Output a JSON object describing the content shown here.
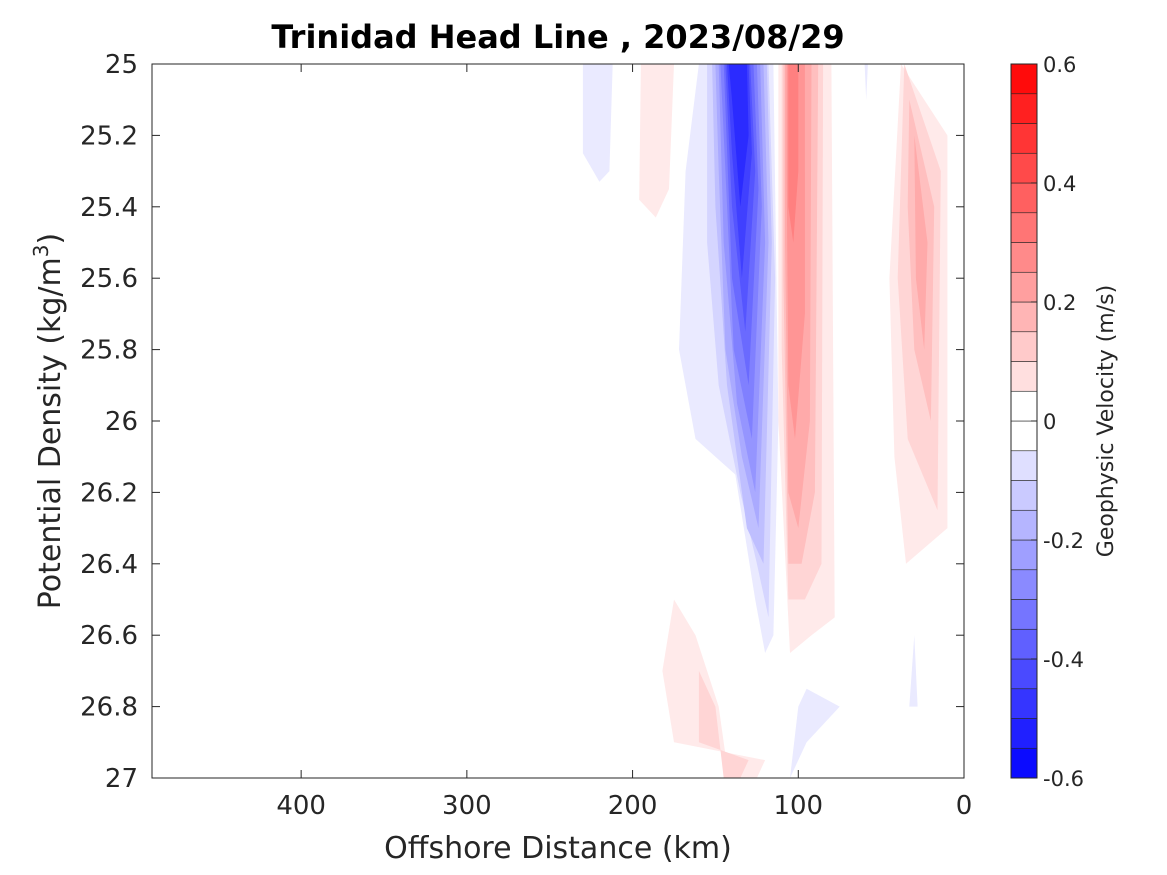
{
  "chart_data": {
    "type": "heatmap",
    "title": "Trinidad Head Line , 2023/08/29",
    "xlabel": "Offshore Distance (km)",
    "ylabel_main": "Potential Density (kg/m",
    "ylabel_sup": "3",
    "ylabel_close": ")",
    "xlim": [
      490,
      0
    ],
    "x_reversed": true,
    "ylim": [
      25,
      27
    ],
    "y_reversed": true,
    "x_ticks": [
      {
        "value": 400,
        "label": "400"
      },
      {
        "value": 300,
        "label": "300"
      },
      {
        "value": 200,
        "label": "200"
      },
      {
        "value": 100,
        "label": "100"
      },
      {
        "value": 0,
        "label": "0"
      }
    ],
    "y_ticks": [
      {
        "value": 25,
        "label": "25"
      },
      {
        "value": 25.2,
        "label": "25.2"
      },
      {
        "value": 25.4,
        "label": "25.4"
      },
      {
        "value": 25.6,
        "label": "25.6"
      },
      {
        "value": 25.8,
        "label": "25.8"
      },
      {
        "value": 26,
        "label": "26"
      },
      {
        "value": 26.2,
        "label": "26.2"
      },
      {
        "value": 26.4,
        "label": "26.4"
      },
      {
        "value": 26.6,
        "label": "26.6"
      },
      {
        "value": 26.8,
        "label": "26.8"
      },
      {
        "value": 27,
        "label": "27"
      }
    ],
    "colorbar": {
      "label": "Geophysic Velocity (m/s)",
      "range": [
        -0.6,
        0.6
      ],
      "levels": [
        -0.6,
        -0.55,
        -0.5,
        -0.45,
        -0.4,
        -0.35,
        -0.3,
        -0.25,
        -0.2,
        -0.15,
        -0.1,
        -0.05,
        0,
        0.05,
        0.1,
        0.15,
        0.2,
        0.25,
        0.3,
        0.35,
        0.4,
        0.45,
        0.5,
        0.55,
        0.6
      ],
      "ticks": [
        {
          "value": 0.6,
          "label": "0.6"
        },
        {
          "value": 0.4,
          "label": "0.4"
        },
        {
          "value": 0.2,
          "label": "0.2"
        },
        {
          "value": 0,
          "label": "0"
        },
        {
          "value": -0.2,
          "label": "-0.2"
        },
        {
          "value": -0.4,
          "label": "-0.4"
        },
        {
          "value": -0.6,
          "label": "-0.6"
        }
      ],
      "negative_color": "#0000ff",
      "positive_color": "#ff0000",
      "zero_color": "#ffffff"
    },
    "contours": [
      {
        "level": -0.05,
        "points": [
          [
            230,
            25
          ],
          [
            212,
            25
          ],
          [
            214,
            25.3
          ],
          [
            220,
            25.33
          ],
          [
            230,
            25.25
          ]
        ]
      },
      {
        "level": 0.05,
        "points": [
          [
            195,
            25
          ],
          [
            175,
            25
          ],
          [
            178,
            25.35
          ],
          [
            186,
            25.43
          ],
          [
            196,
            25.38
          ]
        ]
      },
      {
        "level": -0.05,
        "points": [
          [
            160,
            25
          ],
          [
            115,
            25
          ],
          [
            112,
            26.0
          ],
          [
            115,
            26.6
          ],
          [
            120,
            26.65
          ],
          [
            126,
            26.5
          ],
          [
            138,
            26.15
          ],
          [
            150,
            26.1
          ],
          [
            162,
            26.05
          ],
          [
            172,
            25.8
          ],
          [
            168,
            25.3
          ]
        ]
      },
      {
        "level": -0.1,
        "points": [
          [
            155,
            25
          ],
          [
            118,
            25
          ],
          [
            114,
            25.6
          ],
          [
            118,
            26.55
          ],
          [
            125,
            26.4
          ],
          [
            135,
            26.2
          ],
          [
            148,
            25.9
          ],
          [
            155,
            25.5
          ]
        ]
      },
      {
        "level": -0.15,
        "points": [
          [
            152,
            25
          ],
          [
            119,
            25
          ],
          [
            116,
            25.5
          ],
          [
            121,
            26.4
          ],
          [
            131,
            26.3
          ],
          [
            143,
            25.9
          ],
          [
            150,
            25.4
          ]
        ]
      },
      {
        "level": -0.2,
        "points": [
          [
            150,
            25
          ],
          [
            121,
            25
          ],
          [
            118,
            25.5
          ],
          [
            124,
            26.3
          ],
          [
            134,
            26.1
          ],
          [
            144,
            25.8
          ],
          [
            148,
            25.3
          ]
        ]
      },
      {
        "level": -0.25,
        "points": [
          [
            148,
            25
          ],
          [
            123,
            25
          ],
          [
            120,
            25.5
          ],
          [
            126,
            26.2
          ],
          [
            137,
            25.95
          ],
          [
            145,
            25.5
          ]
        ]
      },
      {
        "level": -0.3,
        "points": [
          [
            147,
            25
          ],
          [
            125,
            25
          ],
          [
            122,
            25.4
          ],
          [
            128,
            26.05
          ],
          [
            139,
            25.8
          ],
          [
            144,
            25.3
          ]
        ]
      },
      {
        "level": -0.35,
        "points": [
          [
            145,
            25
          ],
          [
            127,
            25
          ],
          [
            124,
            25.35
          ],
          [
            130,
            25.9
          ],
          [
            140,
            25.6
          ]
        ]
      },
      {
        "level": -0.4,
        "points": [
          [
            144,
            25
          ],
          [
            129,
            25
          ],
          [
            126,
            25.3
          ],
          [
            132,
            25.75
          ],
          [
            140,
            25.4
          ]
        ]
      },
      {
        "level": -0.45,
        "points": [
          [
            143,
            25
          ],
          [
            130,
            25
          ],
          [
            128,
            25.25
          ],
          [
            134,
            25.6
          ],
          [
            140,
            25.25
          ]
        ]
      },
      {
        "level": -0.5,
        "points": [
          [
            142,
            25
          ],
          [
            131,
            25
          ],
          [
            130,
            25.2
          ],
          [
            135,
            25.4
          ],
          [
            140,
            25.1
          ]
        ]
      },
      {
        "level": 0.05,
        "points": [
          [
            112,
            25
          ],
          [
            80,
            25
          ],
          [
            78,
            26.55
          ],
          [
            92,
            26.6
          ],
          [
            105,
            26.65
          ],
          [
            112,
            26.0
          ]
        ]
      },
      {
        "level": 0.1,
        "points": [
          [
            110,
            25
          ],
          [
            85,
            25
          ],
          [
            86,
            26.4
          ],
          [
            96,
            26.5
          ],
          [
            106,
            26.5
          ],
          [
            110,
            25.8
          ]
        ]
      },
      {
        "level": 0.15,
        "points": [
          [
            109,
            25
          ],
          [
            88,
            25
          ],
          [
            90,
            26.2
          ],
          [
            98,
            26.4
          ],
          [
            106,
            26.4
          ],
          [
            109,
            25.6
          ]
        ]
      },
      {
        "level": 0.2,
        "points": [
          [
            108,
            25
          ],
          [
            92,
            25
          ],
          [
            93,
            26.0
          ],
          [
            100,
            26.3
          ],
          [
            106,
            26.2
          ],
          [
            108,
            25.5
          ]
        ]
      },
      {
        "level": 0.25,
        "points": [
          [
            107,
            25
          ],
          [
            96,
            25
          ],
          [
            96,
            25.7
          ],
          [
            102,
            26.05
          ],
          [
            106,
            25.9
          ],
          [
            107,
            25.3
          ]
        ]
      },
      {
        "level": 0.3,
        "points": [
          [
            106,
            25
          ],
          [
            100,
            25
          ],
          [
            100,
            25.3
          ],
          [
            103,
            25.5
          ],
          [
            106,
            25.4
          ]
        ]
      },
      {
        "level": -0.05,
        "points": [
          [
            60,
            25
          ],
          [
            58,
            25
          ],
          [
            59,
            25.1
          ]
        ]
      },
      {
        "level": 0.05,
        "points": [
          [
            38,
            25
          ],
          [
            10,
            25.2
          ],
          [
            10,
            26.3
          ],
          [
            35,
            26.4
          ],
          [
            42,
            26.1
          ],
          [
            45,
            25.6
          ]
        ]
      },
      {
        "level": 0.1,
        "points": [
          [
            36,
            25
          ],
          [
            14,
            25.3
          ],
          [
            16,
            26.25
          ],
          [
            34,
            26.05
          ],
          [
            40,
            25.6
          ]
        ]
      },
      {
        "level": 0.15,
        "points": [
          [
            33,
            25.1
          ],
          [
            18,
            25.4
          ],
          [
            20,
            26.0
          ],
          [
            30,
            25.8
          ],
          [
            34,
            25.4
          ]
        ]
      },
      {
        "level": 0.2,
        "points": [
          [
            30,
            25.2
          ],
          [
            22,
            25.5
          ],
          [
            24,
            25.8
          ],
          [
            29,
            25.6
          ]
        ]
      },
      {
        "level": 0.05,
        "points": [
          [
            175,
            26.9
          ],
          [
            120,
            26.95
          ],
          [
            125,
            27
          ],
          [
            142,
            27
          ],
          [
            148,
            26.8
          ],
          [
            162,
            26.6
          ],
          [
            175,
            26.5
          ],
          [
            182,
            26.7
          ]
        ]
      },
      {
        "level": 0.1,
        "points": [
          [
            160,
            26.9
          ],
          [
            130,
            26.95
          ],
          [
            135,
            27
          ],
          [
            145,
            27
          ],
          [
            150,
            26.8
          ],
          [
            160,
            26.7
          ]
        ]
      },
      {
        "level": -0.05,
        "points": [
          [
            105,
            27
          ],
          [
            95,
            26.9
          ],
          [
            75,
            26.8
          ],
          [
            95,
            26.75
          ],
          [
            100,
            26.8
          ]
        ]
      },
      {
        "level": -0.05,
        "points": [
          [
            33,
            26.8
          ],
          [
            30,
            26.6
          ],
          [
            28,
            26.8
          ]
        ]
      }
    ]
  }
}
